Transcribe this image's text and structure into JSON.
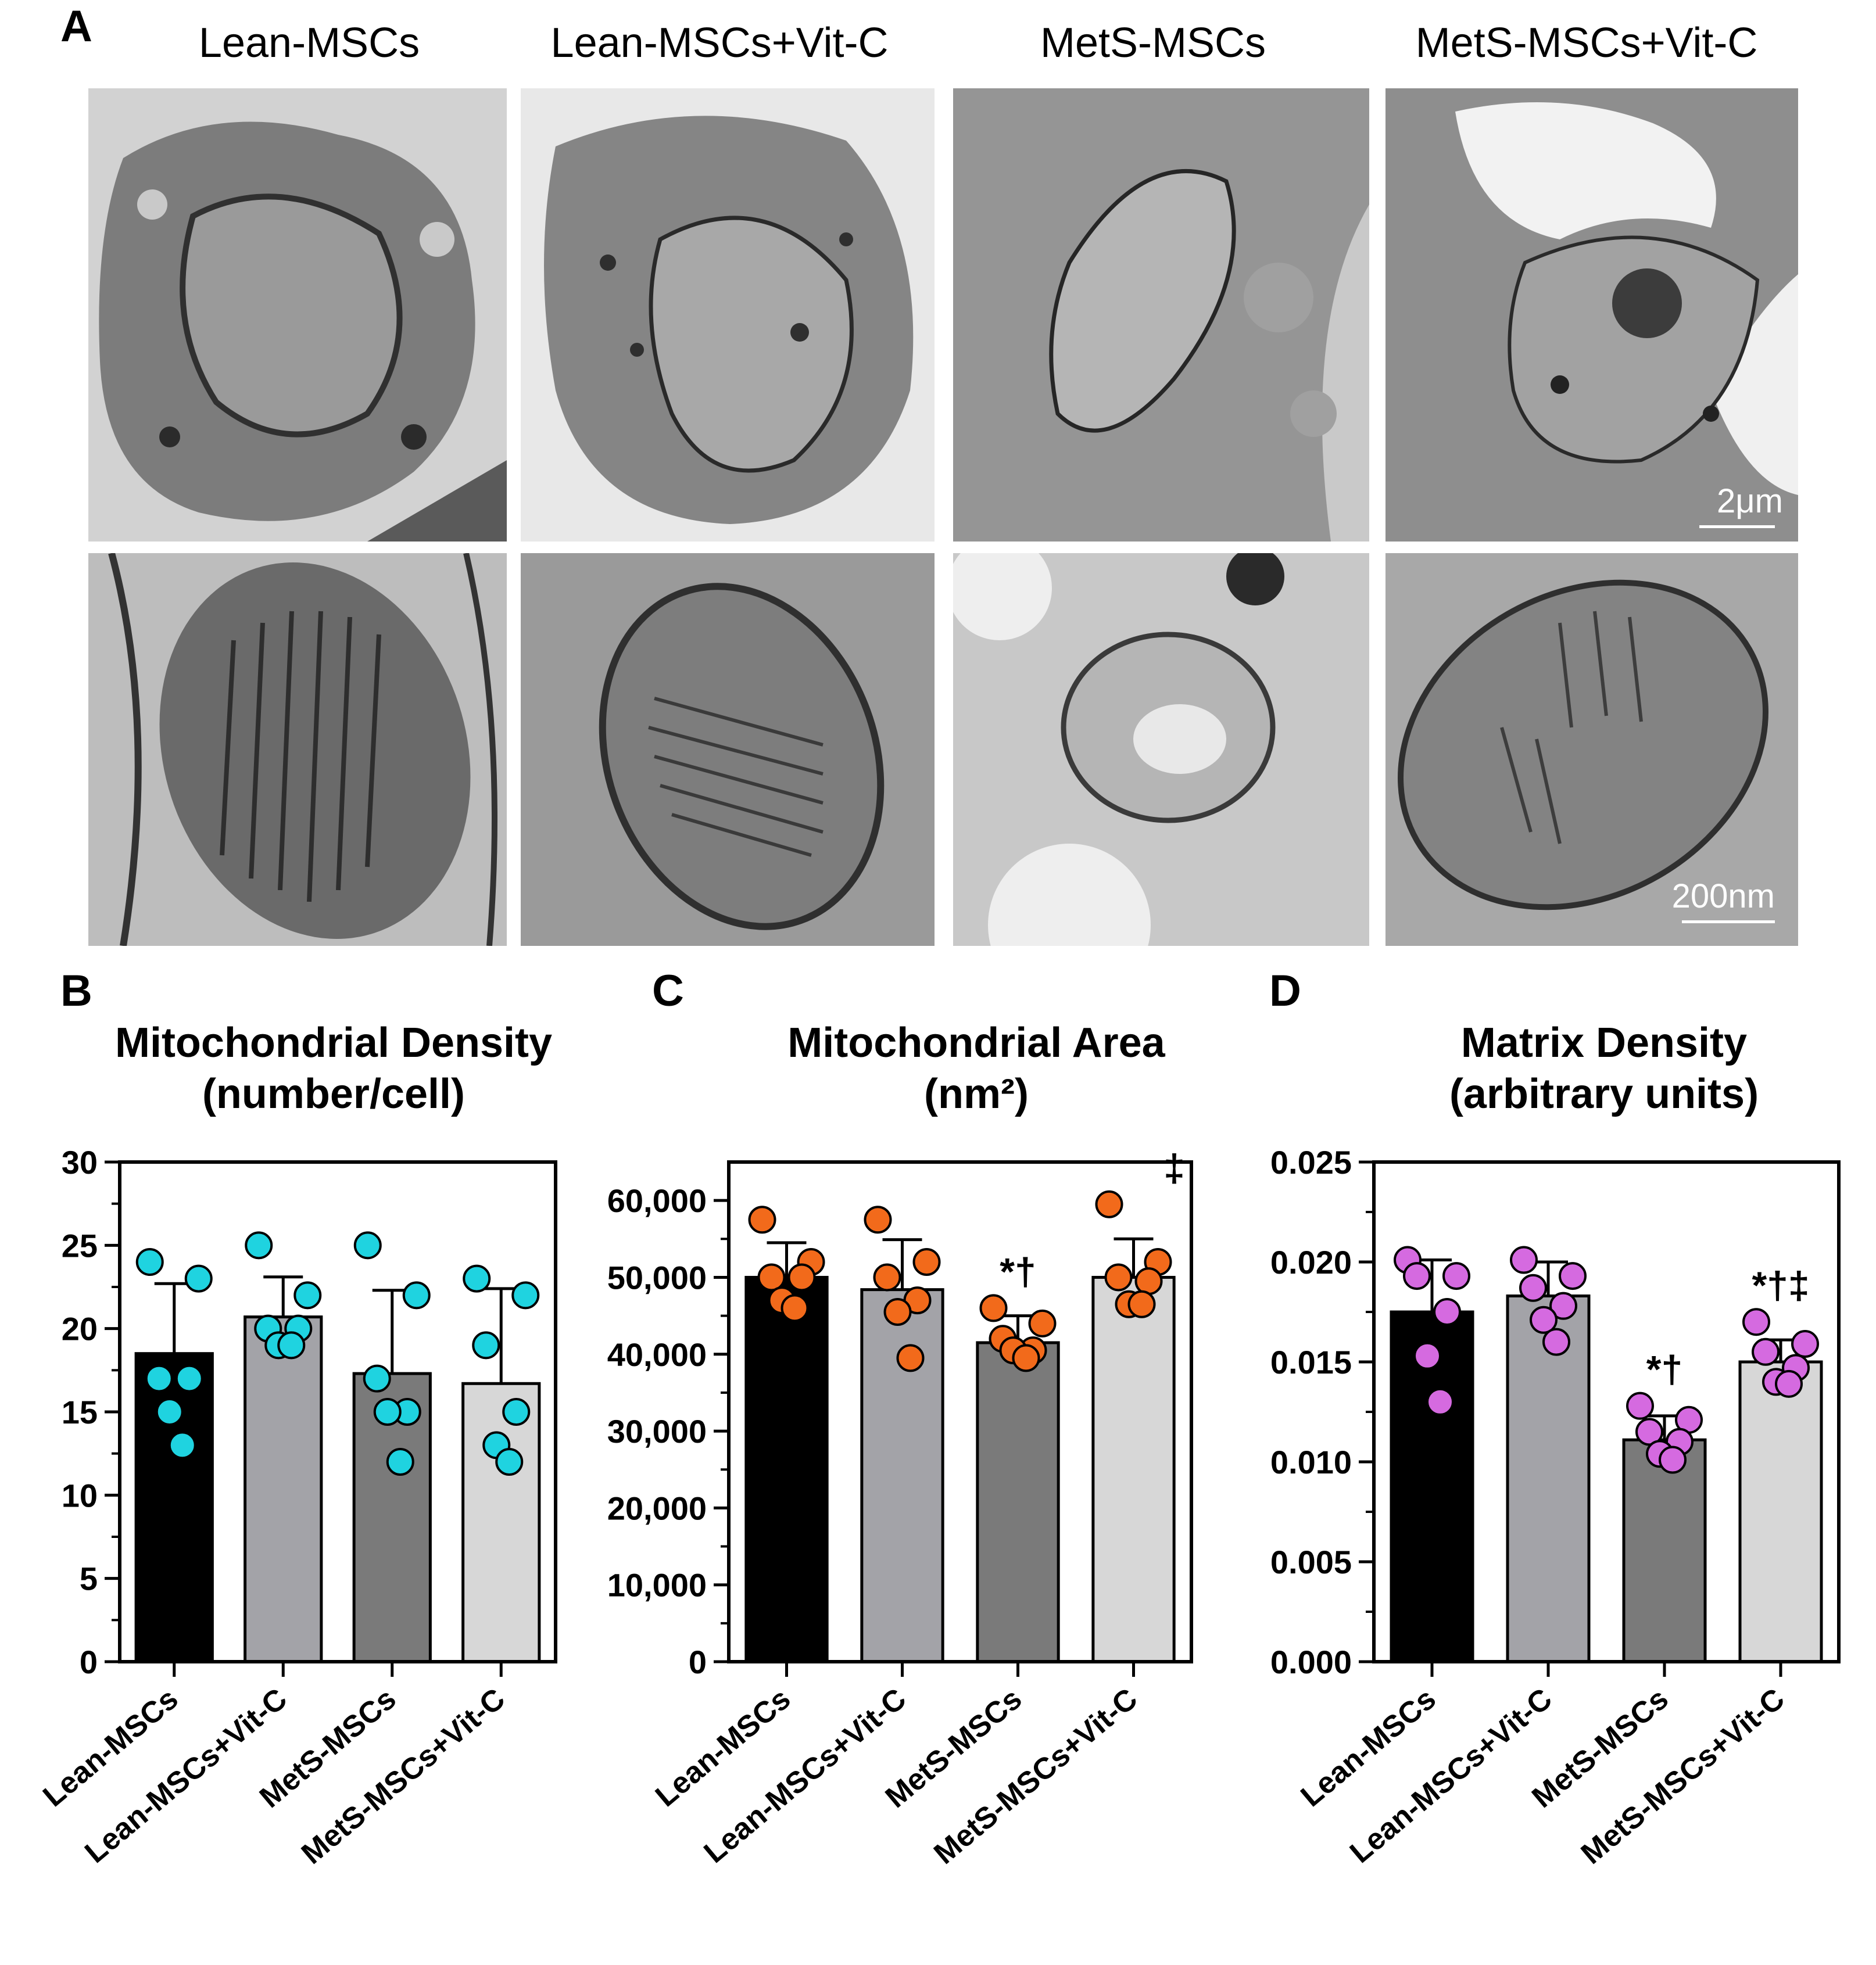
{
  "panel_letters": {
    "a": "A",
    "b": "B",
    "c": "C",
    "d": "D"
  },
  "micrographs": {
    "column_titles": [
      "Lean-MSCs",
      "Lean-MSCs+Vit-C",
      "MetS-MSCs",
      "MetS-MSCs+Vit-C"
    ],
    "scale_bar_top": "2μm",
    "scale_bar_bottom": "200nm"
  },
  "colors": {
    "bar_lean": "#000000",
    "bar_lean_vitc": "#a3a3a8",
    "bar_mets": "#7a7a7a",
    "bar_mets_vitc": "#d7d7d7",
    "dot_b": "#1fd3e0",
    "dot_c": "#f26a1b",
    "dot_d": "#d56ae0"
  },
  "chart_data": [
    {
      "type": "bar",
      "panel": "B",
      "title": [
        "Mitochondrial Density",
        "(number/cell)"
      ],
      "categories": [
        "Lean-MSCs",
        "Lean-MSCs+Vit-C",
        "MetS-MSCs",
        "MetS-MSCs+Vit-C"
      ],
      "values": [
        18.5,
        20.7,
        17.3,
        16.7
      ],
      "errors": [
        4.2,
        2.4,
        5.0,
        5.7
      ],
      "points": [
        [
          24,
          23,
          17,
          17,
          15,
          13
        ],
        [
          25,
          22,
          20,
          20,
          19,
          19
        ],
        [
          25,
          22,
          17,
          15,
          15,
          12
        ],
        [
          23,
          22,
          19,
          15,
          13,
          12
        ]
      ],
      "ylim": [
        0,
        30
      ],
      "yticks": [
        0,
        5,
        10,
        15,
        20,
        25,
        30
      ],
      "ytick_labels": [
        "0",
        "5",
        "10",
        "15",
        "20",
        "25",
        "30"
      ],
      "annotations": [
        "",
        "",
        "",
        ""
      ]
    },
    {
      "type": "bar",
      "panel": "C",
      "title": [
        "Mitochondrial Area",
        "(nm²)"
      ],
      "categories": [
        "Lean-MSCs",
        "Lean-MSCs+Vit-C",
        "MetS-MSCs",
        "MetS-MSCs+Vit-C"
      ],
      "values": [
        50000,
        48400,
        41500,
        50000
      ],
      "errors": [
        4500,
        6500,
        3500,
        5000
      ],
      "points": [
        [
          57500,
          52000,
          50000,
          50000,
          47000,
          46000
        ],
        [
          57500,
          52000,
          50000,
          47000,
          45500,
          39500
        ],
        [
          46000,
          44000,
          42000,
          40500,
          40500,
          39500
        ],
        [
          59500,
          52000,
          50000,
          49500,
          46500,
          46500
        ]
      ],
      "ylim": [
        0,
        65000
      ],
      "yticks": [
        0,
        10000,
        20000,
        30000,
        40000,
        50000,
        60000
      ],
      "ytick_labels": [
        "0",
        "10,000",
        "20,000",
        "30,000",
        "40,000",
        "50,000",
        "60,000"
      ],
      "annotations": [
        "",
        "",
        "*†",
        "‡"
      ]
    },
    {
      "type": "bar",
      "panel": "D",
      "title": [
        "Matrix Density",
        "(arbitrary units)"
      ],
      "categories": [
        "Lean-MSCs",
        "Lean-MSCs+Vit-C",
        "MetS-MSCs",
        "MetS-MSCs+Vit-C"
      ],
      "values": [
        0.0175,
        0.0183,
        0.0111,
        0.015
      ],
      "errors": [
        0.0026,
        0.0017,
        0.0012,
        0.0011
      ],
      "points": [
        [
          0.0201,
          0.0193,
          0.0193,
          0.0175,
          0.0153,
          0.013
        ],
        [
          0.0201,
          0.0193,
          0.0187,
          0.0178,
          0.0171,
          0.016
        ],
        [
          0.0128,
          0.0121,
          0.0115,
          0.011,
          0.0104,
          0.0101
        ],
        [
          0.017,
          0.0159,
          0.0155,
          0.0147,
          0.014,
          0.0139
        ]
      ],
      "ylim": [
        0,
        0.025
      ],
      "yticks": [
        0,
        0.005,
        0.01,
        0.015,
        0.02,
        0.025
      ],
      "ytick_labels": [
        "0.000",
        "0.005",
        "0.010",
        "0.015",
        "0.020",
        "0.025"
      ],
      "annotations": [
        "",
        "",
        "*†",
        "*†‡"
      ]
    }
  ]
}
